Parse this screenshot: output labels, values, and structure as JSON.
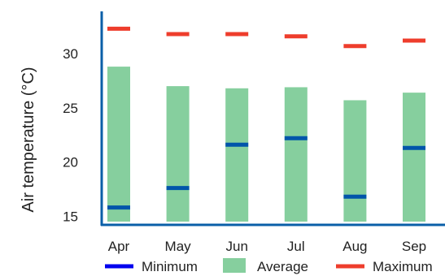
{
  "chart_data": {
    "type": "bar",
    "title": "",
    "xlabel": "",
    "ylabel": "Air temperature (°C)",
    "categories": [
      "Apr",
      "May",
      "Jun",
      "Jul",
      "Aug",
      "Sep"
    ],
    "ylim": [
      14.2,
      33.9
    ],
    "yticks": [
      15,
      20,
      25,
      30
    ],
    "grid": false,
    "legend_position": "bottom",
    "series": [
      {
        "name": "Minimum",
        "kind": "marker",
        "color": "#0055aa",
        "legend_color": "#0000ee",
        "values": [
          15.8,
          17.6,
          21.6,
          22.2,
          16.8,
          21.3
        ]
      },
      {
        "name": "Average",
        "kind": "bar",
        "color": "#86cf9e",
        "values": [
          28.8,
          27.0,
          26.8,
          26.9,
          25.7,
          26.4
        ]
      },
      {
        "name": "Maximum",
        "kind": "marker",
        "color": "#ee3d2c",
        "values": [
          32.3,
          31.8,
          31.8,
          31.6,
          30.7,
          31.2
        ]
      }
    ]
  }
}
